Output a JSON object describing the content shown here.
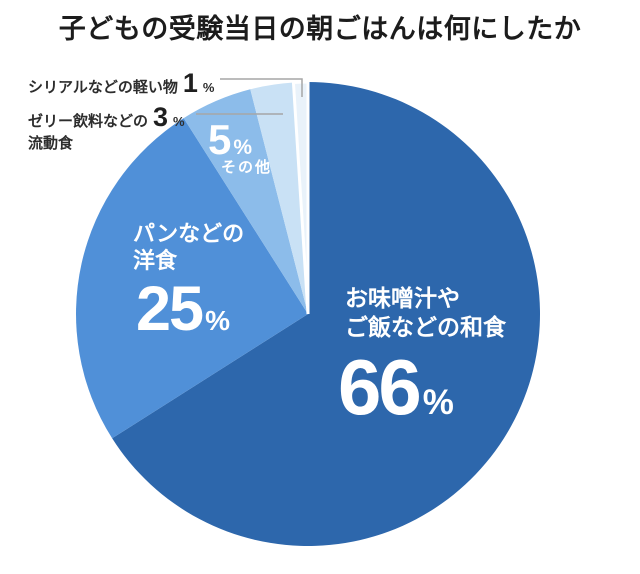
{
  "title": "子どもの受験当日の朝ごはんは何にしたか",
  "chart_data": {
    "type": "pie",
    "title": "子どもの受験当日の朝ごはんは何にしたか",
    "start_angle_deg": 0,
    "direction": "clockwise",
    "total_pct": 100,
    "slices": [
      {
        "key": "washoku",
        "label": "お味噌汁やご飯などの和食",
        "value_pct": 66,
        "color": "#2d67ac",
        "label_placement": "inside"
      },
      {
        "key": "yoshoku",
        "label": "パンなどの洋食",
        "value_pct": 25,
        "color": "#5090d8",
        "label_placement": "inside"
      },
      {
        "key": "other",
        "label": "その他",
        "value_pct": 5,
        "color": "#8cbcea",
        "label_placement": "inside"
      },
      {
        "key": "jelly",
        "label": "ゼリー飲料などの流動食",
        "value_pct": 3,
        "color": "#c9e1f5",
        "label_placement": "outside"
      },
      {
        "key": "cereal",
        "label": "シリアルなどの軽い物",
        "value_pct": 1,
        "color": "#e9f2fa",
        "label_placement": "outside"
      }
    ]
  },
  "display": {
    "inside_labels": {
      "washoku": {
        "line1": "お味噌汁や",
        "line2": "ご飯などの和食",
        "value": "66",
        "unit": "%"
      },
      "yoshoku": {
        "line1": "パンなどの",
        "line2": "洋食",
        "value": "25",
        "unit": "%"
      },
      "other": {
        "value": "5",
        "unit": "%",
        "caption": "その他"
      }
    },
    "outside_labels": {
      "cereal": {
        "text": "シリアルなどの軽い物",
        "value": "1",
        "unit": "%"
      },
      "jelly": {
        "line1": "ゼリー飲料などの",
        "line2": "流動食",
        "value": "3",
        "unit": "%"
      }
    }
  },
  "colors": {
    "background": "#ffffff",
    "title_text": "#1c1c1c",
    "callout_text": "#2d2d2d",
    "inside_text": "#ffffff",
    "leader_line": "#a6a6a6"
  }
}
